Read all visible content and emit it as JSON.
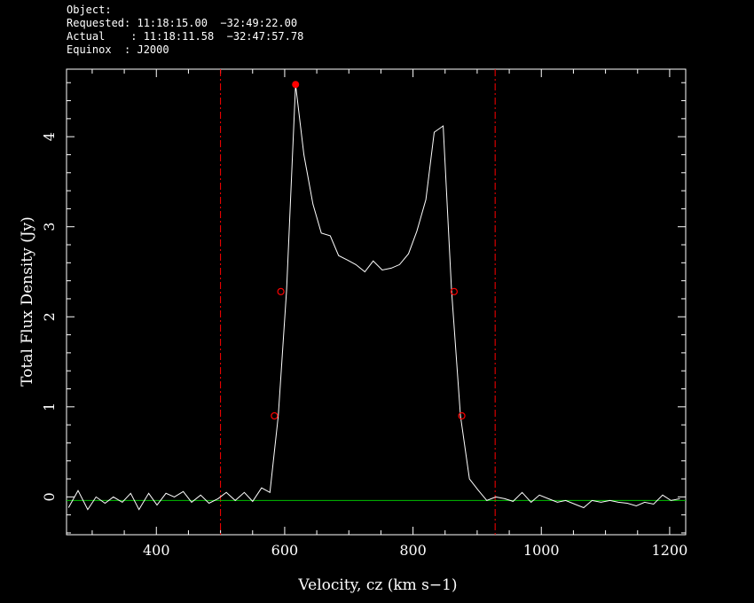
{
  "header": {
    "line1": "Object:",
    "line2": "Requested: 11:18:15.00  −32:49:22.00",
    "line3": "Actual    : 11:18:11.58  −32:47:57.78",
    "line4": "Equinox  : J2000"
  },
  "chart_data": {
    "type": "line",
    "xlabel": "Velocity, cz (km s−1)",
    "ylabel": "Total Flux Density (Jy)",
    "xlim": [
      260,
      1225
    ],
    "ylim": [
      -0.42,
      4.75
    ],
    "xticks": [
      400,
      600,
      800,
      1000,
      1200
    ],
    "yticks": [
      0,
      1,
      2,
      3,
      4
    ],
    "colors": {
      "spectrum": "#ffffff",
      "baseline": "#00c000",
      "markers": "#ff0000"
    },
    "baseline_y": -0.04,
    "window_lines_x": [
      500,
      928
    ],
    "series": [
      {
        "x": [
          263,
          278,
          293,
          306,
          320,
          333,
          347,
          360,
          373,
          388,
          401,
          415,
          428,
          442,
          455,
          469,
          482,
          496,
          509,
          523,
          537,
          550,
          564,
          577,
          590,
          603,
          617,
          630,
          644,
          657,
          671,
          684,
          698,
          711,
          725,
          738,
          752,
          766,
          779,
          793,
          806,
          820,
          833,
          847,
          860,
          874,
          888,
          901,
          915,
          929,
          943,
          956,
          970,
          984,
          997,
          1011,
          1025,
          1038,
          1052,
          1066,
          1079,
          1093,
          1107,
          1120,
          1134,
          1148,
          1161,
          1175,
          1189,
          1202,
          1216
        ],
        "y": [
          -0.12,
          0.07,
          -0.14,
          0.0,
          -0.07,
          0.0,
          -0.06,
          0.04,
          -0.14,
          0.04,
          -0.09,
          0.04,
          0.0,
          0.06,
          -0.06,
          0.02,
          -0.07,
          -0.02,
          0.05,
          -0.04,
          0.05,
          -0.05,
          0.1,
          0.05,
          0.9,
          2.3,
          4.58,
          3.8,
          3.25,
          2.93,
          2.9,
          2.68,
          2.63,
          2.58,
          2.5,
          2.62,
          2.52,
          2.54,
          2.58,
          2.7,
          2.95,
          3.3,
          4.05,
          4.12,
          2.3,
          0.9,
          0.2,
          0.08,
          -0.04,
          0.0,
          -0.02,
          -0.05,
          0.05,
          -0.06,
          0.02,
          -0.02,
          -0.06,
          -0.04,
          -0.08,
          -0.12,
          -0.04,
          -0.06,
          -0.04,
          -0.06,
          -0.07,
          -0.1,
          -0.06,
          -0.08,
          0.02,
          -0.04,
          -0.02
        ]
      }
    ],
    "markers": [
      {
        "x": 584,
        "y": 0.9,
        "style": "open"
      },
      {
        "x": 594,
        "y": 2.28,
        "style": "open"
      },
      {
        "x": 617,
        "y": 4.58,
        "style": "filled"
      },
      {
        "x": 864,
        "y": 2.28,
        "style": "open"
      },
      {
        "x": 876,
        "y": 0.9,
        "style": "open"
      }
    ]
  }
}
